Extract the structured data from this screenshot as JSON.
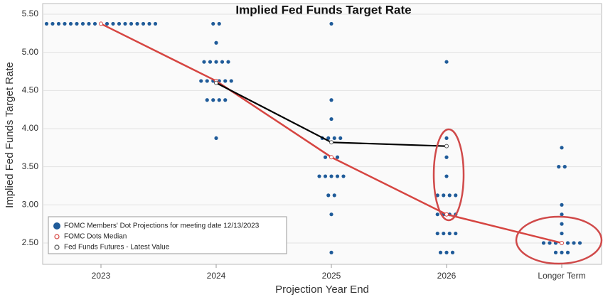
{
  "chart_data": {
    "type": "dot",
    "title": "Implied Fed Funds Target Rate",
    "y_label": "Implied Fed Funds Target Rate",
    "x_label": "Projection Year End",
    "categories": [
      "2023",
      "2024",
      "2025",
      "2026",
      "Longer Term"
    ],
    "ylim": [
      2.22,
      5.64
    ],
    "yticks": [
      {
        "value": 2.5,
        "label": "2.50"
      },
      {
        "value": 3.0,
        "label": "3.00"
      },
      {
        "value": 3.5,
        "label": "3.50"
      },
      {
        "value": 4.0,
        "label": "4.00"
      },
      {
        "value": 4.5,
        "label": "4.50"
      },
      {
        "value": 5.0,
        "label": "5.00"
      },
      {
        "value": 5.5,
        "label": "5.50"
      }
    ],
    "grid": true,
    "series": [
      {
        "name": "FOMC Members' Dot Projections for meeting date 12/13/2023",
        "color": "#1f5b99",
        "values": [
          [
            5.375,
            5.375,
            5.375,
            5.375,
            5.375,
            5.375,
            5.375,
            5.375,
            5.375,
            5.375,
            5.375,
            5.375,
            5.375,
            5.375,
            5.375,
            5.375,
            5.375,
            5.375,
            5.375
          ],
          [
            5.375,
            5.375,
            5.125,
            4.875,
            4.875,
            4.875,
            4.875,
            4.875,
            4.625,
            4.625,
            4.625,
            4.625,
            4.625,
            4.625,
            4.375,
            4.375,
            4.375,
            4.375,
            3.875
          ],
          [
            5.375,
            4.375,
            4.125,
            3.875,
            3.875,
            3.875,
            3.875,
            3.625,
            3.625,
            3.625,
            3.375,
            3.375,
            3.375,
            3.375,
            3.375,
            3.125,
            3.125,
            2.875,
            2.375
          ],
          [
            4.875,
            3.875,
            3.625,
            3.375,
            3.125,
            3.125,
            3.125,
            3.125,
            2.875,
            2.875,
            2.875,
            2.875,
            2.625,
            2.625,
            2.625,
            2.625,
            2.375,
            2.375,
            2.375
          ],
          [
            3.75,
            3.5,
            3.5,
            3.0,
            2.875,
            2.75,
            2.625,
            2.5,
            2.5,
            2.5,
            2.5,
            2.5,
            2.5,
            2.5,
            2.375,
            2.375,
            2.375
          ]
        ]
      },
      {
        "name": "FOMC Dots Median",
        "color": "#d64541",
        "values": [
          5.375,
          4.625,
          3.625,
          2.875,
          2.5
        ]
      },
      {
        "name": "Fed Funds Futures - Latest Value",
        "color": "#000000",
        "values": [
          null,
          4.6,
          3.82,
          3.77,
          null
        ]
      }
    ]
  }
}
